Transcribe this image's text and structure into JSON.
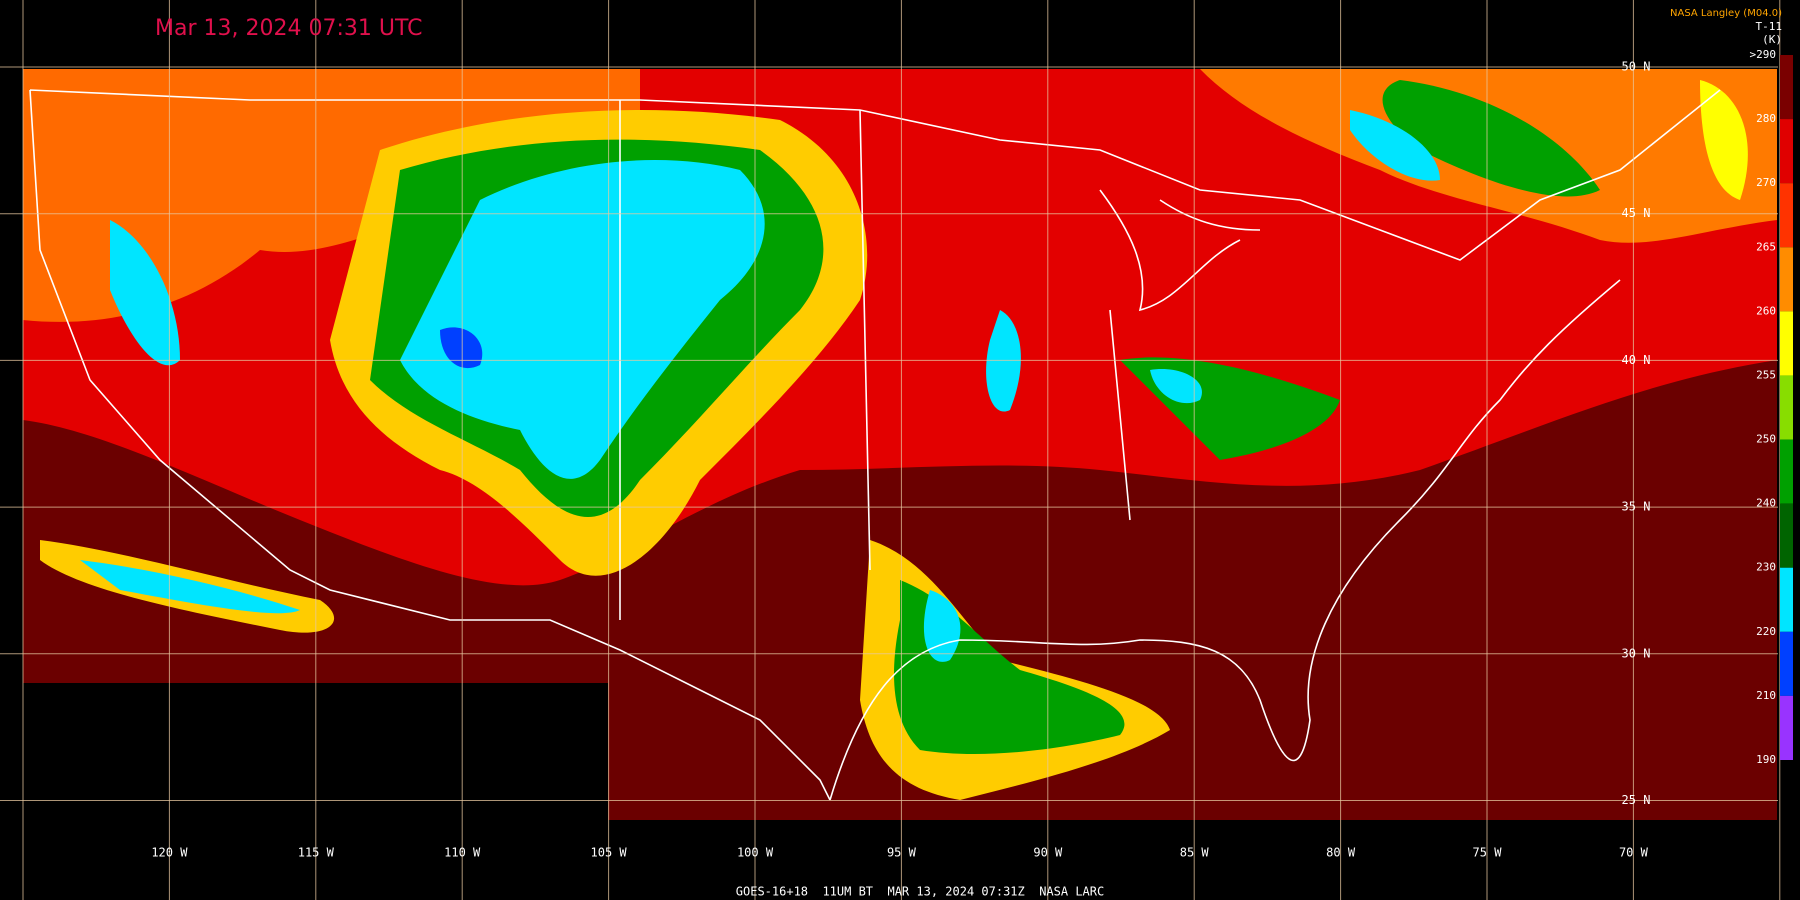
{
  "header": {
    "title": "Mar 13, 2024 07:31 UTC",
    "source": "NASA Langley (M04.0)",
    "channel": "T-11",
    "unit": "(K)"
  },
  "footer": "GOES-16+18  11UM BT  MAR 13, 2024 07:31Z  NASA LARC",
  "latitude_labels": [
    "50 N",
    "45 N",
    "40 N",
    "35 N",
    "30 N",
    "25 N"
  ],
  "longitude_labels": [
    "120 W",
    "115 W",
    "110 W",
    "105 W",
    "100 W",
    "95 W",
    "90 W",
    "85 W",
    "80 W",
    "75 W",
    "70 W"
  ],
  "colorbar": {
    "labels": [
      ">290",
      "280",
      "270",
      "265",
      "260",
      "255",
      "250",
      "240",
      "230",
      "220",
      "210",
      "190"
    ],
    "colors": [
      "#7a0000",
      "#e00000",
      "#ff3300",
      "#ff8c00",
      "#ffff00",
      "#88dd00",
      "#00a000",
      "#006400",
      "#00e5ff",
      "#0040ff",
      "#9933ff"
    ]
  }
}
